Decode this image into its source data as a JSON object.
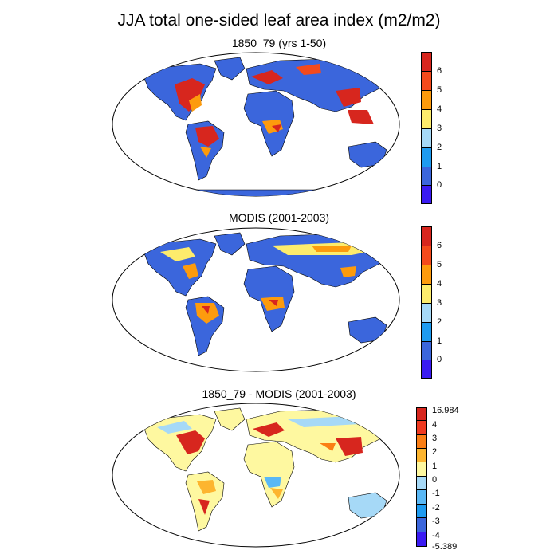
{
  "title": "JJA total one-sided leaf area index (m2/m2)",
  "panels": [
    {
      "subtitle": "1850_79 (yrs 1-50)",
      "colorbar": {
        "labels": [
          "6",
          "5",
          "4",
          "3",
          "2",
          "1",
          "0"
        ],
        "colors": [
          "#d7261e",
          "#f44a1c",
          "#fd9b0d",
          "#fdec6c",
          "#a6d9f7",
          "#1e9bf0",
          "#3b66dc",
          "#3a1bf2"
        ]
      }
    },
    {
      "subtitle": "MODIS (2001-2003)",
      "colorbar": {
        "labels": [
          "6",
          "5",
          "4",
          "3",
          "2",
          "1",
          "0"
        ],
        "colors": [
          "#d7261e",
          "#f44a1c",
          "#fd9b0d",
          "#fdec6c",
          "#a6d9f7",
          "#1e9bf0",
          "#3b66dc",
          "#3a1bf2"
        ]
      }
    },
    {
      "subtitle": "1850_79 - MODIS (2001-2003)",
      "colorbar": {
        "labels": [
          "16.984",
          "4",
          "3",
          "2",
          "1",
          "0",
          "-1",
          "-2",
          "-3",
          "-4",
          "-5.389"
        ],
        "colors": [
          "#d7261e",
          "#ef3a20",
          "#fb7e14",
          "#fdb52f",
          "#fef8a0",
          "#a6d9f7",
          "#5ab8f5",
          "#1e9bf0",
          "#3b66dc",
          "#3a1bf2"
        ]
      }
    }
  ]
}
